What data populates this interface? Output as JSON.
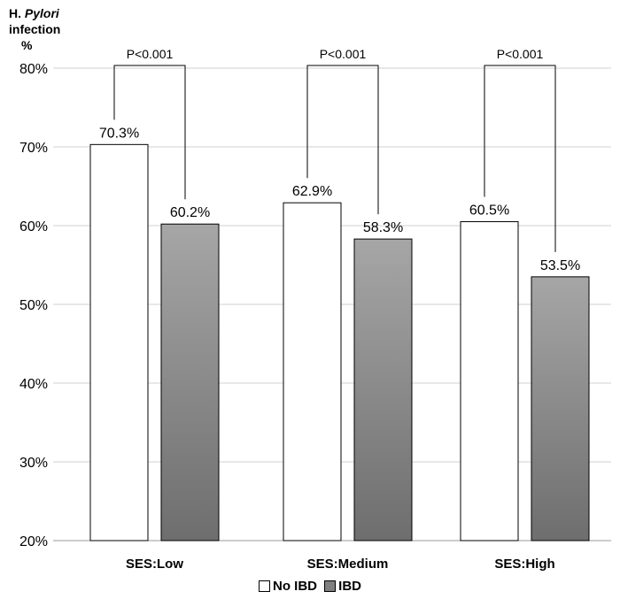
{
  "chart_data": {
    "type": "bar",
    "title": "",
    "ylabel": {
      "part1": "H.",
      "part2": "Pylori",
      "line2": "infection",
      "line3": "%"
    },
    "xlabel": "",
    "categories": [
      "SES:Low",
      "SES:Medium",
      "SES:High"
    ],
    "series": [
      {
        "name": "No IBD",
        "values": [
          70.3,
          62.9,
          60.5
        ],
        "labels": [
          "70.3%",
          "62.9%",
          "60.5%"
        ],
        "color": "#ffffff"
      },
      {
        "name": "IBD",
        "values": [
          60.2,
          58.3,
          53.5
        ],
        "labels": [
          "60.2%",
          "58.3%",
          "53.5%"
        ],
        "color": "#808080"
      }
    ],
    "ylim": [
      20,
      80
    ],
    "yticks": [
      20,
      30,
      40,
      50,
      60,
      70,
      80
    ],
    "ytick_labels": [
      "20%",
      "30%",
      "40%",
      "50%",
      "60%",
      "70%",
      "80%"
    ],
    "grid": true,
    "legend_position": "bottom",
    "annotations": [
      "P<0.001",
      "P<0.001",
      "P<0.001"
    ]
  }
}
